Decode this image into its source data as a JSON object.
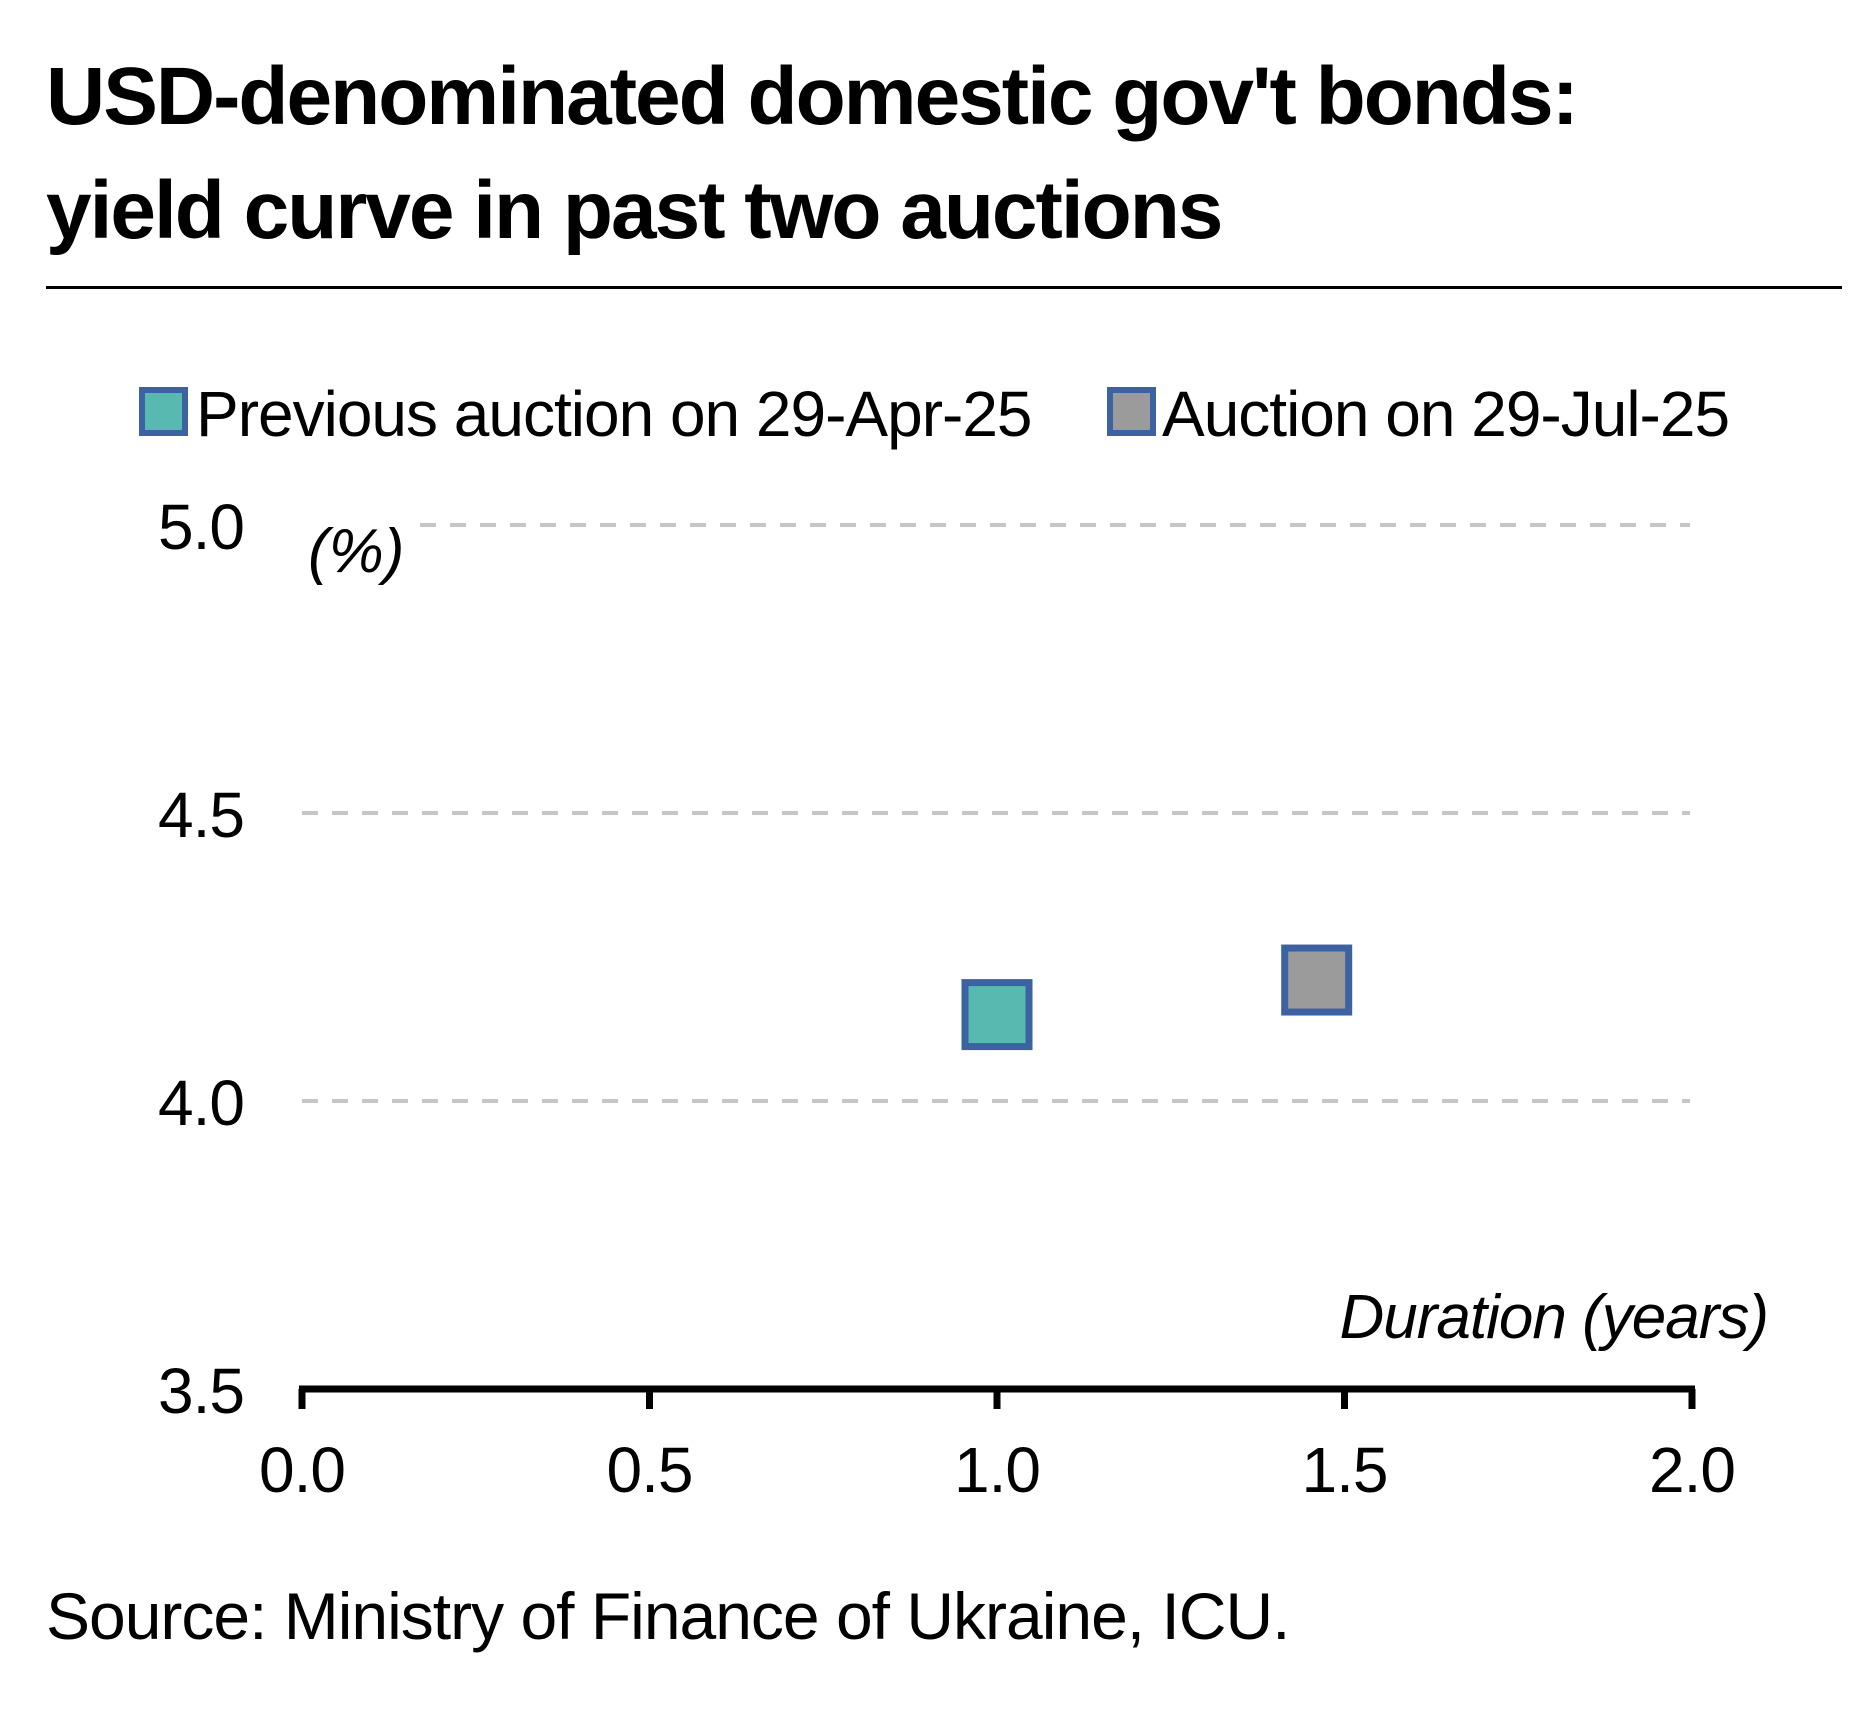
{
  "title_line1": "USD-denominated domestic gov't bonds:",
  "title_line2": "yield curve in past two auctions",
  "source": "Source: Ministry of Finance of Ukraine, ICU.",
  "chart_data": {
    "type": "scatter",
    "title": "USD-denominated domestic gov't bonds: yield curve in past two auctions",
    "xlabel": "Duration (years)",
    "ylabel": "(%)",
    "xlim": [
      0.0,
      2.0
    ],
    "ylim": [
      3.5,
      5.0
    ],
    "xticks": [
      "0.0",
      "0.5",
      "1.0",
      "1.5",
      "2.0"
    ],
    "yticks": [
      "3.5",
      "4.0",
      "4.5",
      "5.0"
    ],
    "ygrid": [
      4.0,
      4.5,
      5.0
    ],
    "grid": "horizontal dashed",
    "legend_position": "top",
    "series": [
      {
        "name": "Previous auction on 29-Apr-25",
        "color": "#58b9b0",
        "edge_color": "#3c62a2",
        "marker": "square",
        "points": [
          {
            "x": 1.0,
            "y": 4.15
          }
        ]
      },
      {
        "name": "Auction on 29-Jul-25",
        "color": "#9b9b9b",
        "edge_color": "#3c62a2",
        "marker": "square",
        "points": [
          {
            "x": 1.46,
            "y": 4.21
          }
        ]
      }
    ]
  }
}
